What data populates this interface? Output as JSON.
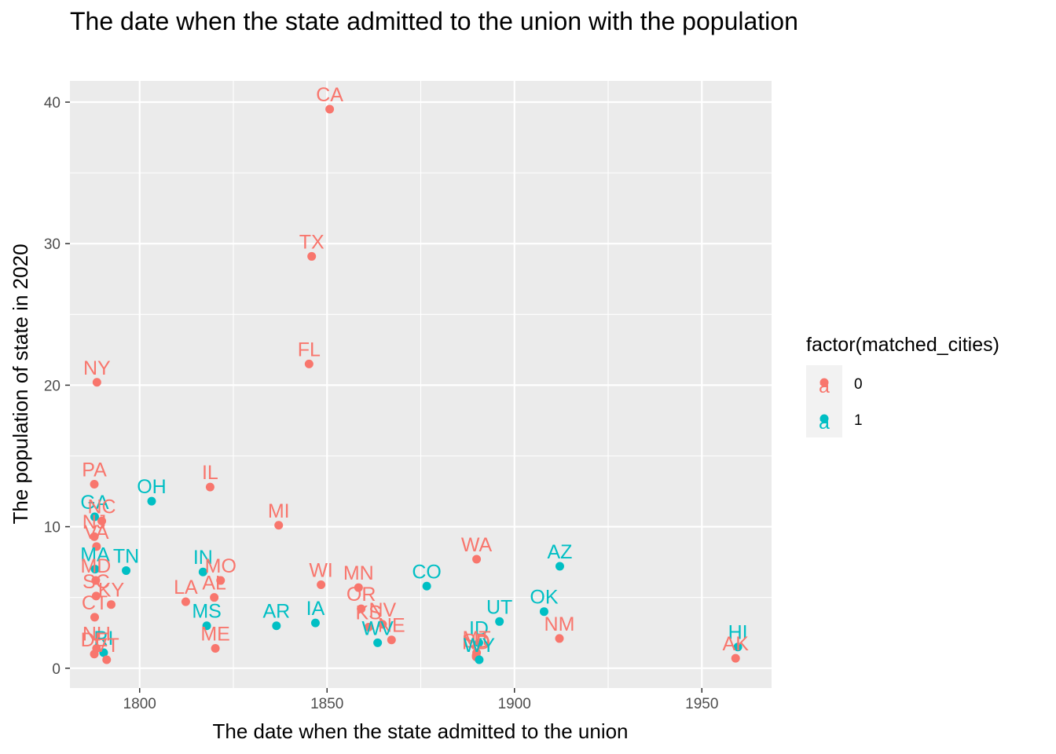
{
  "chart_data": {
    "type": "scatter",
    "title": "The date when the state admitted to the union with the population",
    "xlabel": "The date when the state admitted to the union",
    "ylabel": "The population of state in 2020",
    "xlim": [
      1781.4,
      1968.6
    ],
    "ylim": [
      -1.4,
      41.5
    ],
    "x_ticks": [
      1800,
      1850,
      1900,
      1950
    ],
    "y_ticks": [
      0,
      10,
      20,
      30,
      40
    ],
    "grid": true,
    "legend": {
      "title": "factor(matched_cities)",
      "position": "right",
      "entries": [
        {
          "label": "0",
          "color": "#F8766D"
        },
        {
          "label": "1",
          "color": "#00BFC4"
        }
      ]
    },
    "colors": {
      "0": "#F8766D",
      "1": "#00BFC4"
    },
    "points": [
      {
        "label": "CA",
        "x": 1850.7,
        "y": 39.5,
        "group": "0"
      },
      {
        "label": "TX",
        "x": 1845.9,
        "y": 29.1,
        "group": "0"
      },
      {
        "label": "FL",
        "x": 1845.2,
        "y": 21.5,
        "group": "0"
      },
      {
        "label": "NY",
        "x": 1788.6,
        "y": 20.2,
        "group": "0"
      },
      {
        "label": "PA",
        "x": 1787.9,
        "y": 13.0,
        "group": "0"
      },
      {
        "label": "IL",
        "x": 1818.8,
        "y": 12.8,
        "group": "0"
      },
      {
        "label": "OH",
        "x": 1803.2,
        "y": 11.8,
        "group": "1"
      },
      {
        "label": "GA",
        "x": 1788.0,
        "y": 10.7,
        "group": "1"
      },
      {
        "label": "NC",
        "x": 1789.9,
        "y": 10.4,
        "group": "0"
      },
      {
        "label": "MI",
        "x": 1837.1,
        "y": 10.1,
        "group": "0"
      },
      {
        "label": "NJ",
        "x": 1787.9,
        "y": 9.3,
        "group": "0"
      },
      {
        "label": "VA",
        "x": 1788.5,
        "y": 8.6,
        "group": "0"
      },
      {
        "label": "WA",
        "x": 1889.9,
        "y": 7.7,
        "group": "0"
      },
      {
        "label": "AZ",
        "x": 1912.1,
        "y": 7.2,
        "group": "1"
      },
      {
        "label": "MA",
        "x": 1788.1,
        "y": 7.0,
        "group": "1"
      },
      {
        "label": "TN",
        "x": 1796.4,
        "y": 6.9,
        "group": "1"
      },
      {
        "label": "IN",
        "x": 1816.9,
        "y": 6.8,
        "group": "1"
      },
      {
        "label": "MO",
        "x": 1821.6,
        "y": 6.2,
        "group": "0"
      },
      {
        "label": "MD",
        "x": 1788.3,
        "y": 6.2,
        "group": "0"
      },
      {
        "label": "WI",
        "x": 1848.4,
        "y": 5.9,
        "group": "0"
      },
      {
        "label": "CO",
        "x": 1876.6,
        "y": 5.8,
        "group": "1"
      },
      {
        "label": "MN",
        "x": 1858.4,
        "y": 5.7,
        "group": "0"
      },
      {
        "label": "SC",
        "x": 1788.4,
        "y": 5.1,
        "group": "0"
      },
      {
        "label": "AL",
        "x": 1819.9,
        "y": 5.0,
        "group": "0"
      },
      {
        "label": "LA",
        "x": 1812.3,
        "y": 4.7,
        "group": "0"
      },
      {
        "label": "KY",
        "x": 1792.4,
        "y": 4.5,
        "group": "0"
      },
      {
        "label": "OR",
        "x": 1859.1,
        "y": 4.2,
        "group": "0"
      },
      {
        "label": "OK",
        "x": 1907.9,
        "y": 4.0,
        "group": "1"
      },
      {
        "label": "CT",
        "x": 1788.0,
        "y": 3.6,
        "group": "0"
      },
      {
        "label": "UT",
        "x": 1896.0,
        "y": 3.3,
        "group": "1"
      },
      {
        "label": "IA",
        "x": 1846.9,
        "y": 3.2,
        "group": "1"
      },
      {
        "label": "NV",
        "x": 1864.8,
        "y": 3.1,
        "group": "0"
      },
      {
        "label": "AR",
        "x": 1836.5,
        "y": 3.0,
        "group": "1"
      },
      {
        "label": "MS",
        "x": 1817.9,
        "y": 3.0,
        "group": "1"
      },
      {
        "label": "KS",
        "x": 1861.1,
        "y": 2.9,
        "group": "0"
      },
      {
        "label": "NM",
        "x": 1912.0,
        "y": 2.1,
        "group": "0"
      },
      {
        "label": "NE",
        "x": 1867.2,
        "y": 2.0,
        "group": "0"
      },
      {
        "label": "ID",
        "x": 1890.5,
        "y": 1.8,
        "group": "1"
      },
      {
        "label": "WV",
        "x": 1863.5,
        "y": 1.8,
        "group": "1"
      },
      {
        "label": "HI",
        "x": 1959.6,
        "y": 1.5,
        "group": "1"
      },
      {
        "label": "NH",
        "x": 1788.5,
        "y": 1.4,
        "group": "0"
      },
      {
        "label": "ME",
        "x": 1820.2,
        "y": 1.4,
        "group": "0"
      },
      {
        "label": "MT",
        "x": 1889.9,
        "y": 1.1,
        "group": "0"
      },
      {
        "label": "RI",
        "x": 1790.4,
        "y": 1.1,
        "group": "1"
      },
      {
        "label": "DE",
        "x": 1787.9,
        "y": 1.0,
        "group": "0"
      },
      {
        "label": "SD",
        "x": 1889.8,
        "y": 0.9,
        "group": "0"
      },
      {
        "label": "ND",
        "x": 1889.8,
        "y": 0.8,
        "group": "0"
      },
      {
        "label": "AK",
        "x": 1959.0,
        "y": 0.7,
        "group": "0"
      },
      {
        "label": "VT",
        "x": 1791.2,
        "y": 0.6,
        "group": "0"
      },
      {
        "label": "WY",
        "x": 1890.6,
        "y": 0.6,
        "group": "1"
      }
    ]
  }
}
